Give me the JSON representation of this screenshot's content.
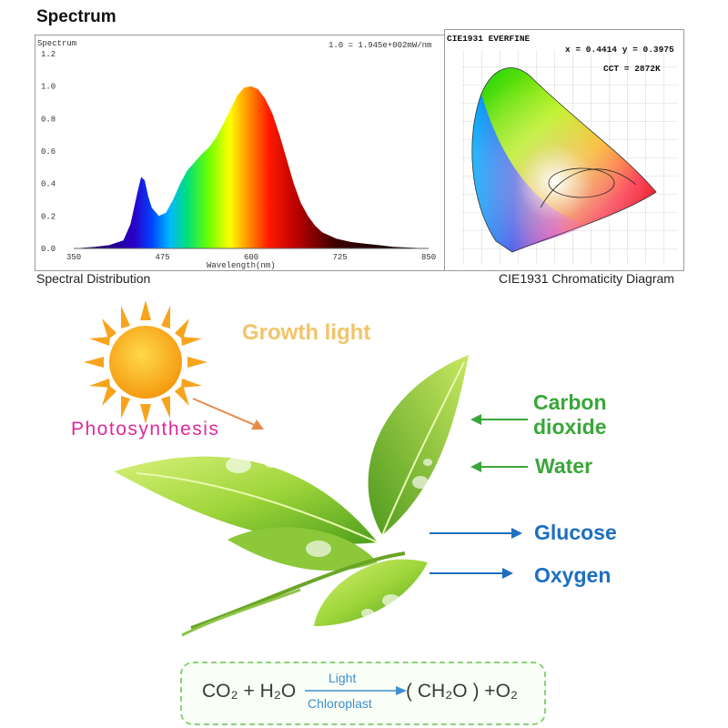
{
  "header": {
    "title": "Spectrum"
  },
  "spectrum": {
    "panel_label": "Spectrum",
    "scale_text": "1.0 = 1.945e+002mW/nm",
    "caption": "Spectral Distribution"
  },
  "chart_data": {
    "type": "area",
    "title": "Spectrum",
    "xlabel": "Wavelength(nm)",
    "ylabel": "",
    "xlim": [
      350,
      850
    ],
    "ylim": [
      0,
      1.2
    ],
    "x_ticks": [
      350,
      475,
      600,
      725,
      850
    ],
    "y_ticks": [
      0.0,
      0.2,
      0.4,
      0.6,
      0.8,
      1.0,
      1.2
    ],
    "y_tick_labels": [
      "0.0",
      "0.2",
      "0.4",
      "0.6",
      "0.8",
      "1.0",
      "1.2"
    ],
    "grid": false,
    "x": [
      350,
      380,
      400,
      420,
      430,
      440,
      445,
      450,
      455,
      460,
      470,
      480,
      490,
      500,
      510,
      520,
      530,
      540,
      550,
      560,
      570,
      580,
      590,
      600,
      610,
      620,
      630,
      640,
      650,
      660,
      670,
      680,
      690,
      700,
      720,
      740,
      760,
      780,
      800,
      850
    ],
    "y": [
      0.0,
      0.01,
      0.02,
      0.05,
      0.15,
      0.35,
      0.44,
      0.42,
      0.32,
      0.25,
      0.2,
      0.22,
      0.3,
      0.4,
      0.48,
      0.53,
      0.58,
      0.62,
      0.68,
      0.76,
      0.85,
      0.94,
      0.99,
      1.0,
      0.98,
      0.92,
      0.83,
      0.7,
      0.55,
      0.4,
      0.28,
      0.2,
      0.14,
      0.1,
      0.06,
      0.04,
      0.03,
      0.02,
      0.01,
      0.0
    ]
  },
  "cie": {
    "header_left": "CIE1931  EVERFINE",
    "header_right": "x = 0.4414  y = 0.3975",
    "cct": "CCT = 2872K",
    "caption": "CIE1931 Chromaticity Diagram"
  },
  "diagram": {
    "growth_light": "Growth light",
    "photosynthesis": "Photosynthesis",
    "inputs": [
      "Carbon",
      "dioxide",
      "Water"
    ],
    "outputs": [
      "Glucose",
      "Oxygen"
    ],
    "colors": {
      "input": "#3aa63a",
      "output": "#1d6fc0",
      "sun": "#f7a41d"
    }
  },
  "equation": {
    "reactants": "CO₂ + H₂O",
    "above_arrow": "Light",
    "below_arrow": "Chloroplast",
    "products": "( CH₂O ) +O₂"
  }
}
